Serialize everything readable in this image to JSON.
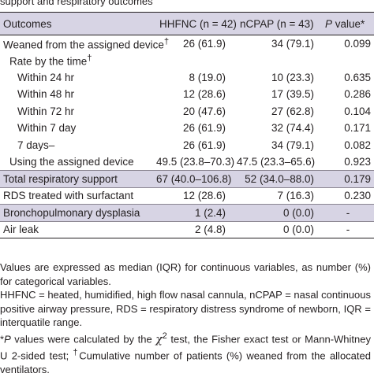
{
  "caption": "support and respiratory outcomes",
  "headers": {
    "outcome": "Outcomes",
    "hhfnc": "HHFNC (n = 42)",
    "ncpap": "nCPAP (n = 43)",
    "p_italic": "P",
    "p_rest": " value*"
  },
  "rows": [
    {
      "label": "Weaned from the assigned device",
      "sup": "†",
      "hhfnc": "26 (61.9)",
      "ncpap": "34 (79.1)",
      "p": "0.099"
    },
    {
      "label": "Rate by the time",
      "sup": "†",
      "hhfnc": "",
      "ncpap": "",
      "p": ""
    },
    {
      "label": "Within 24 hr",
      "hhfnc": "8 (19.0)",
      "ncpap": "10 (23.3)",
      "p": "0.635"
    },
    {
      "label": "Within 48 hr",
      "hhfnc": "12 (28.6)",
      "ncpap": "17 (39.5)",
      "p": "0.286"
    },
    {
      "label": "Within 72 hr",
      "hhfnc": "20 (47.6)",
      "ncpap": "27 (62.8)",
      "p": "0.104"
    },
    {
      "label": "Within 7 day",
      "hhfnc": "26 (61.9)",
      "ncpap": "32 (74.4)",
      "p": "0.171"
    },
    {
      "label": "7 days–",
      "hhfnc": "26 (61.9)",
      "ncpap": "34 (79.1)",
      "p": "0.082"
    },
    {
      "label": "Using the assigned device",
      "hhfnc": "49.5 (23.8–70.3)",
      "ncpap": "47.5 (23.3–65.6)",
      "p": "0.923"
    },
    {
      "label": "Total respiratory support",
      "hhfnc": "67 (40.0–106.8)",
      "ncpap": "52 (34.0–88.0)",
      "p": "0.179"
    },
    {
      "label": "RDS treated with surfactant",
      "hhfnc": "12 (28.6)",
      "ncpap": "7 (16.3)",
      "p": "0.230"
    },
    {
      "label": "Bronchopulmonary dysplasia",
      "hhfnc": "1 (2.4)",
      "ncpap": "0 (0.0)",
      "p": "-"
    },
    {
      "label": "Air leak",
      "hhfnc": "2 (4.8)",
      "ncpap": "0 (0.0)",
      "p": "-"
    }
  ],
  "notes": {
    "line1": "Values are expressed as median (IQR) for continuous variables, as number (%) for categorical variables.",
    "line2": "HHFNC = heated, humidified, high flow nasal cannula, nCPAP = nasal continuous positive airway pressure, RDS = respiratory distress syndrome of newborn, IQR = interquatile range.",
    "star": "*",
    "p_italic": "P",
    "part_a": " values were calculated by the ",
    "chi": "χ",
    "sq": "2",
    "part_b": " test, the Fisher exact test or Mann-Whitney U 2-sided test; ",
    "dagger": "†",
    "part_c": "Cumulative number of patients (%) weaned from the allocated ventilators."
  }
}
